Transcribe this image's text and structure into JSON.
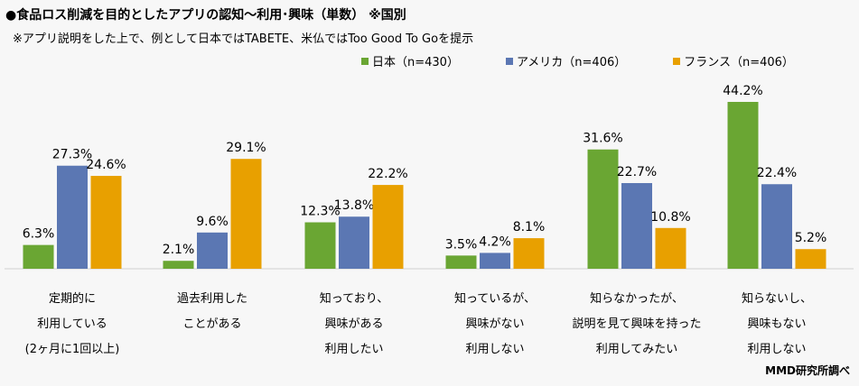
{
  "chart_data": {
    "type": "bar",
    "title": "●食品ロス削減を目的としたアプリの認知～利用･興味（単数） ※国別",
    "subtitle": "※アプリ説明をした上で、例として日本ではTABETE、米仏ではToo Good To Goを提示",
    "categories": [
      [
        "定期的に",
        "利用している",
        "(2ヶ月に1回以上)"
      ],
      [
        "過去利用した",
        "ことがある"
      ],
      [
        "知っており、",
        "興味がある",
        "利用したい"
      ],
      [
        "知っているが、",
        "興味がない",
        "利用しない"
      ],
      [
        "知らなかったが、",
        "説明を見て興味を持った",
        "利用してみたい"
      ],
      [
        "知らないし、",
        "興味もない",
        "利用しない"
      ]
    ],
    "series": [
      {
        "name": "日本（n=430）",
        "color": "#6aa633",
        "values": [
          6.3,
          2.1,
          12.3,
          3.5,
          31.6,
          44.2
        ]
      },
      {
        "name": "アメリカ（n=406）",
        "color": "#5b77b3",
        "values": [
          27.3,
          9.6,
          13.8,
          4.2,
          22.7,
          22.4
        ]
      },
      {
        "name": "フランス（n=406）",
        "color": "#e8a000",
        "values": [
          24.6,
          29.1,
          22.2,
          8.1,
          10.8,
          5.2
        ]
      }
    ],
    "ylim": [
      0,
      50
    ],
    "value_suffix": "%",
    "legend_position": "top-right",
    "grid": false,
    "source": "MMD研究所調べ"
  }
}
